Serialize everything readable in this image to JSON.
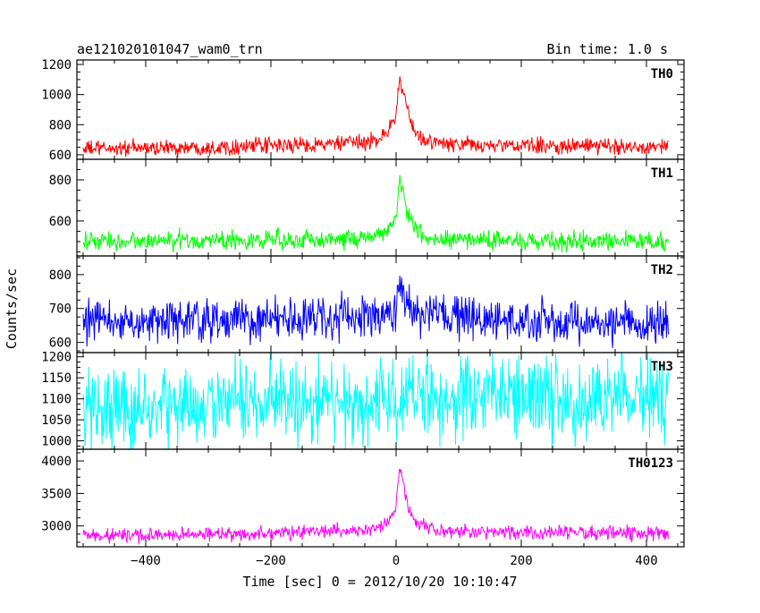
{
  "header": {
    "left": "ae121020101047_wam0_trn",
    "right": "Bin time: 1.0 s"
  },
  "axes": {
    "xlabel": "Time [sec] 0 = 2012/10/20 10:10:47",
    "ylabel": "Counts/sec"
  },
  "chart_data": {
    "type": "line",
    "shared_x": {
      "range": [
        -510,
        460
      ],
      "ticks": [
        -400,
        -200,
        0,
        200,
        400
      ],
      "tick_labels": [
        "−400",
        "−200",
        "0",
        "200",
        "400"
      ],
      "data_range": [
        -500,
        435
      ],
      "bin_width": 1.0
    },
    "panels": [
      {
        "name": "TH0",
        "color": "#ff0000",
        "ylim": [
          570,
          1230
        ],
        "yticks": [
          600,
          800,
          1000,
          1200
        ],
        "ytick_labels": [
          "600",
          "800",
          "1000",
          "1200"
        ],
        "profile": {
          "x": [
            -500,
            -300,
            -150,
            -50,
            -20,
            0,
            5,
            10,
            15,
            20,
            30,
            50,
            80,
            150,
            435
          ],
          "y": [
            640,
            650,
            665,
            680,
            720,
            860,
            1100,
            1050,
            930,
            860,
            740,
            690,
            670,
            660,
            655
          ]
        },
        "noise_amplitude": 35
      },
      {
        "name": "TH1",
        "color": "#00ff00",
        "ylim": [
          430,
          900
        ],
        "yticks": [
          600,
          800
        ],
        "ytick_labels": [
          "600",
          "800"
        ],
        "profile": {
          "x": [
            -500,
            -300,
            -150,
            -50,
            -20,
            0,
            5,
            10,
            15,
            20,
            30,
            50,
            80,
            150,
            435
          ],
          "y": [
            500,
            505,
            510,
            515,
            540,
            620,
            780,
            760,
            690,
            620,
            560,
            520,
            510,
            505,
            500
          ]
        },
        "noise_amplitude": 30
      },
      {
        "name": "TH2",
        "color": "#0000ff",
        "ylim": [
          570,
          855
        ],
        "yticks": [
          600,
          700,
          800
        ],
        "ytick_labels": [
          "600",
          "700",
          "800"
        ],
        "profile": {
          "x": [
            -500,
            -300,
            -150,
            -50,
            0,
            5,
            10,
            20,
            40,
            100,
            200,
            435
          ],
          "y": [
            660,
            665,
            670,
            675,
            690,
            780,
            740,
            700,
            680,
            670,
            660,
            655
          ]
        },
        "noise_amplitude": 40
      },
      {
        "name": "TH3",
        "color": "#00ffff",
        "ylim": [
          980,
          1210
        ],
        "yticks": [
          1000,
          1050,
          1100,
          1150,
          1200
        ],
        "ytick_labels": [
          "1000",
          "1050",
          "1100",
          "1150",
          "1200"
        ],
        "profile": {
          "x": [
            -500,
            -350,
            -200,
            0,
            200,
            435
          ],
          "y": [
            1075,
            1080,
            1090,
            1100,
            1105,
            1100
          ]
        },
        "noise_amplitude": 65
      },
      {
        "name": "TH0123",
        "color": "#ff00ff",
        "ylim": [
          2680,
          4180
        ],
        "yticks": [
          3000,
          3500,
          4000
        ],
        "ytick_labels": [
          "3000",
          "3500",
          "4000"
        ],
        "profile": {
          "x": [
            -500,
            -300,
            -150,
            -50,
            -20,
            0,
            5,
            10,
            15,
            20,
            30,
            50,
            80,
            150,
            435
          ],
          "y": [
            2850,
            2870,
            2900,
            2940,
            3000,
            3250,
            3900,
            3800,
            3450,
            3250,
            3050,
            2960,
            2930,
            2910,
            2880
          ]
        },
        "noise_amplitude": 70
      }
    ]
  }
}
